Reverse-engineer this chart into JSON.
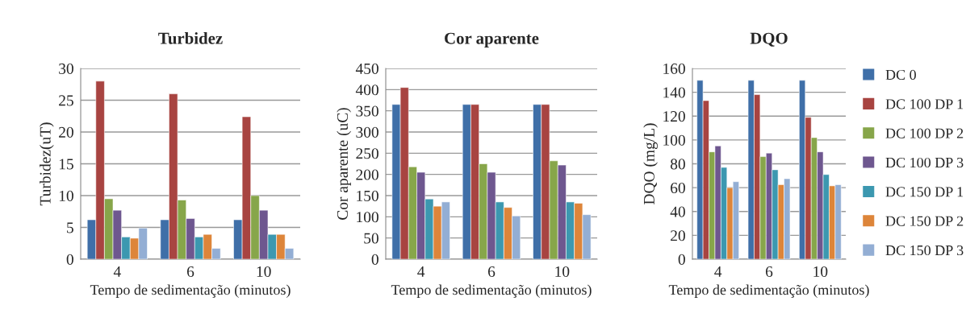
{
  "chart_data": [
    {
      "type": "bar",
      "title": "Turbidez",
      "xlabel": "Tempo de sedimentação (minutos)",
      "ylabel": "Turbidez(uT)",
      "categories": [
        "4",
        "6",
        "10"
      ],
      "ylim": [
        0,
        30
      ],
      "yticks": [
        0,
        5,
        10,
        15,
        20,
        25,
        30
      ],
      "grid": "y",
      "legend": false,
      "series": [
        {
          "color": "#3f6fa8",
          "values": [
            6.2,
            6.2,
            6.2
          ]
        },
        {
          "color": "#a84441",
          "values": [
            28,
            26,
            22.4
          ]
        },
        {
          "color": "#87a64a",
          "values": [
            9.5,
            9.3,
            10
          ]
        },
        {
          "color": "#6e578f",
          "values": [
            7.7,
            6.4,
            7.7
          ]
        },
        {
          "color": "#3c98b0",
          "values": [
            3.5,
            3.5,
            3.9
          ]
        },
        {
          "color": "#dd853a",
          "values": [
            3.3,
            3.9,
            3.9
          ]
        },
        {
          "color": "#93aed4",
          "values": [
            4.9,
            1.7,
            1.7
          ]
        }
      ]
    },
    {
      "type": "bar",
      "title": "Cor aparente",
      "xlabel": "Tempo de sedimentação (minutos)",
      "ylabel": "Cor aparente (uC)",
      "categories": [
        "4",
        "6",
        "10"
      ],
      "ylim": [
        0,
        450
      ],
      "yticks": [
        0,
        50,
        100,
        150,
        200,
        250,
        300,
        350,
        400,
        450
      ],
      "grid": "y",
      "legend": false,
      "series": [
        {
          "color": "#3f6fa8",
          "values": [
            365,
            365,
            365
          ]
        },
        {
          "color": "#a84441",
          "values": [
            405,
            365,
            365
          ]
        },
        {
          "color": "#87a64a",
          "values": [
            218,
            225,
            232
          ]
        },
        {
          "color": "#6e578f",
          "values": [
            205,
            205,
            222
          ]
        },
        {
          "color": "#3c98b0",
          "values": [
            142,
            135,
            135
          ]
        },
        {
          "color": "#dd853a",
          "values": [
            125,
            122,
            132
          ]
        },
        {
          "color": "#93aed4",
          "values": [
            135,
            102,
            105
          ]
        }
      ]
    },
    {
      "type": "bar",
      "title": "DQO",
      "xlabel": "Tempo de sedimentação (minutos)",
      "ylabel": "DQO (mg/L)",
      "categories": [
        "4",
        "6",
        "10"
      ],
      "ylim": [
        0,
        160
      ],
      "yticks": [
        0,
        20,
        40,
        60,
        80,
        100,
        120,
        140,
        160
      ],
      "grid": "y",
      "legend": "right",
      "series": [
        {
          "name": "DC 0",
          "color": "#3f6fa8",
          "values": [
            150,
            150,
            150
          ]
        },
        {
          "name": "DC 100 DP 1",
          "color": "#a84441",
          "values": [
            133,
            138,
            119
          ]
        },
        {
          "name": "DC 100 DP 2",
          "color": "#87a64a",
          "values": [
            90,
            86,
            102
          ]
        },
        {
          "name": "DC 100 DP 3",
          "color": "#6e578f",
          "values": [
            95,
            89,
            90
          ]
        },
        {
          "name": "DC 150 DP 1",
          "color": "#3c98b0",
          "values": [
            77,
            75,
            71
          ]
        },
        {
          "name": "DC 150 DP 2",
          "color": "#dd853a",
          "values": [
            60,
            62.5,
            61.5
          ]
        },
        {
          "name": "DC 150 DP 3",
          "color": "#93aed4",
          "values": [
            65,
            67.5,
            62.5
          ]
        }
      ]
    }
  ]
}
